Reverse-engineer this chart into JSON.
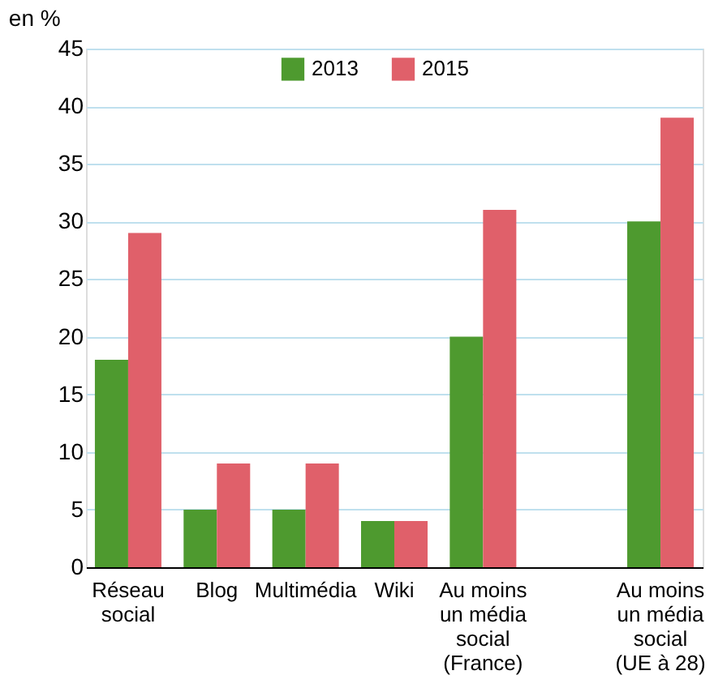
{
  "chart_data": {
    "type": "bar",
    "ylabel": "en %",
    "categories": [
      "Réseau\nsocial",
      "Blog",
      "Multimédia",
      "Wiki",
      "Au moins\nun média\nsocial\n(France)",
      null,
      "Au moins\nun média\nsocial\n(UE à 28)"
    ],
    "series": [
      {
        "name": "2013",
        "color": "#4e9a2f",
        "values": [
          18,
          5,
          5,
          4,
          20,
          null,
          30
        ]
      },
      {
        "name": "2015",
        "color": "#e0606a",
        "values": [
          29,
          9,
          9,
          4,
          31,
          null,
          39
        ]
      }
    ],
    "ylim": [
      0,
      45
    ],
    "yticks": [
      0,
      5,
      10,
      15,
      20,
      25,
      30,
      35,
      40,
      45
    ],
    "grid": "y",
    "legend": "top"
  }
}
